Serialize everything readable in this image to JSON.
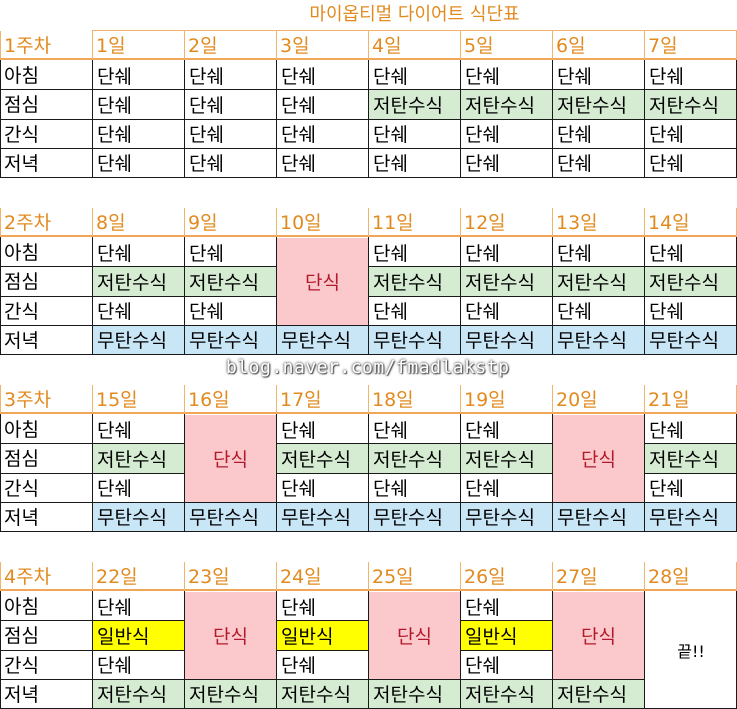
{
  "title": "마이옵티멀 다이어트 식단표",
  "watermark": "blog.naver.com/fmadlakstp",
  "colors": {
    "header_text": "#e28a1e",
    "green": "#d5ecd2",
    "blue": "#c9e6f7",
    "pink": "#fbc8cc",
    "yellow": "#ffff00"
  },
  "weeks": [
    {
      "label": "1주차",
      "days": [
        "1일",
        "2일",
        "3일",
        "4일",
        "5일",
        "6일",
        "7일"
      ],
      "rows": [
        {
          "meal": "아침",
          "cells": [
            {
              "text": "단쉐"
            },
            {
              "text": "단쉐"
            },
            {
              "text": "단쉐"
            },
            {
              "text": "단쉐"
            },
            {
              "text": "단쉐"
            },
            {
              "text": "단쉐"
            },
            {
              "text": "단쉐"
            }
          ]
        },
        {
          "meal": "점심",
          "cells": [
            {
              "text": "단쉐"
            },
            {
              "text": "단쉐"
            },
            {
              "text": "단쉐"
            },
            {
              "text": "저탄수식",
              "color": "green"
            },
            {
              "text": "저탄수식",
              "color": "green"
            },
            {
              "text": "저탄수식",
              "color": "green"
            },
            {
              "text": "저탄수식",
              "color": "green"
            }
          ]
        },
        {
          "meal": "간식",
          "cells": [
            {
              "text": "단쉐"
            },
            {
              "text": "단쉐"
            },
            {
              "text": "단쉐"
            },
            {
              "text": "단쉐"
            },
            {
              "text": "단쉐"
            },
            {
              "text": "단쉐"
            },
            {
              "text": "단쉐"
            }
          ]
        },
        {
          "meal": "저녁",
          "cells": [
            {
              "text": "단쉐"
            },
            {
              "text": "단쉐"
            },
            {
              "text": "단쉐"
            },
            {
              "text": "단쉐"
            },
            {
              "text": "단쉐"
            },
            {
              "text": "단쉐"
            },
            {
              "text": "단쉐"
            }
          ]
        }
      ]
    },
    {
      "label": "2주차",
      "days": [
        "8일",
        "9일",
        "10일",
        "11일",
        "12일",
        "13일",
        "14일"
      ],
      "rows": [
        {
          "meal": "아침",
          "cells": [
            {
              "text": "단쉐"
            },
            {
              "text": "단쉐"
            },
            {
              "text": "단식",
              "color": "pink",
              "rowspan": 3
            },
            {
              "text": "단쉐"
            },
            {
              "text": "단쉐"
            },
            {
              "text": "단쉐"
            },
            {
              "text": "단쉐"
            }
          ]
        },
        {
          "meal": "점심",
          "cells": [
            {
              "text": "저탄수식",
              "color": "green"
            },
            {
              "text": "저탄수식",
              "color": "green"
            },
            null,
            {
              "text": "저탄수식",
              "color": "green"
            },
            {
              "text": "저탄수식",
              "color": "green"
            },
            {
              "text": "저탄수식",
              "color": "green"
            },
            {
              "text": "저탄수식",
              "color": "green"
            }
          ]
        },
        {
          "meal": "간식",
          "cells": [
            {
              "text": "단쉐"
            },
            {
              "text": "단쉐"
            },
            null,
            {
              "text": "단쉐"
            },
            {
              "text": "단쉐"
            },
            {
              "text": "단쉐"
            },
            {
              "text": "단쉐"
            }
          ]
        },
        {
          "meal": "저녁",
          "cells": [
            {
              "text": "무탄수식",
              "color": "blue"
            },
            {
              "text": "무탄수식",
              "color": "blue"
            },
            {
              "text": "무탄수식",
              "color": "blue"
            },
            {
              "text": "무탄수식",
              "color": "blue"
            },
            {
              "text": "무탄수식",
              "color": "blue"
            },
            {
              "text": "무탄수식",
              "color": "blue"
            },
            {
              "text": "무탄수식",
              "color": "blue"
            }
          ]
        }
      ]
    },
    {
      "label": "3주차",
      "days": [
        "15일",
        "16일",
        "17일",
        "18일",
        "19일",
        "20일",
        "21일"
      ],
      "rows": [
        {
          "meal": "아침",
          "cells": [
            {
              "text": "단쉐"
            },
            {
              "text": "단식",
              "color": "pink",
              "rowspan": 3
            },
            {
              "text": "단쉐"
            },
            {
              "text": "단쉐"
            },
            {
              "text": "단쉐"
            },
            {
              "text": "단식",
              "color": "pink",
              "rowspan": 3
            },
            {
              "text": "단쉐"
            }
          ]
        },
        {
          "meal": "점심",
          "cells": [
            {
              "text": "저탄수식",
              "color": "green"
            },
            null,
            {
              "text": "저탄수식",
              "color": "green"
            },
            {
              "text": "저탄수식",
              "color": "green"
            },
            {
              "text": "저탄수식",
              "color": "green"
            },
            null,
            {
              "text": "저탄수식",
              "color": "green"
            }
          ]
        },
        {
          "meal": "간식",
          "cells": [
            {
              "text": "단쉐"
            },
            null,
            {
              "text": "단쉐"
            },
            {
              "text": "단쉐"
            },
            {
              "text": "단쉐"
            },
            null,
            {
              "text": "단쉐"
            }
          ]
        },
        {
          "meal": "저녁",
          "cells": [
            {
              "text": "무탄수식",
              "color": "blue"
            },
            {
              "text": "무탄수식",
              "color": "blue"
            },
            {
              "text": "무탄수식",
              "color": "blue"
            },
            {
              "text": "무탄수식",
              "color": "blue"
            },
            {
              "text": "무탄수식",
              "color": "blue"
            },
            {
              "text": "무탄수식",
              "color": "blue"
            },
            {
              "text": "무탄수식",
              "color": "blue"
            }
          ]
        }
      ]
    },
    {
      "label": "4주차",
      "days": [
        "22일",
        "23일",
        "24일",
        "25일",
        "26일",
        "27일",
        "28일"
      ],
      "rows": [
        {
          "meal": "아침",
          "cells": [
            {
              "text": "단쉐"
            },
            {
              "text": "단식",
              "color": "pink",
              "rowspan": 3
            },
            {
              "text": "단쉐"
            },
            {
              "text": "단식",
              "color": "pink",
              "rowspan": 3
            },
            {
              "text": "단쉐"
            },
            {
              "text": "단식",
              "color": "pink",
              "rowspan": 3
            },
            {
              "text": "끝!!",
              "color": "end",
              "rowspan": 4
            }
          ]
        },
        {
          "meal": "점심",
          "cells": [
            {
              "text": "일반식",
              "color": "yellow"
            },
            null,
            {
              "text": "일반식",
              "color": "yellow"
            },
            null,
            {
              "text": "일반식",
              "color": "yellow"
            },
            null,
            null
          ]
        },
        {
          "meal": "간식",
          "cells": [
            {
              "text": "단쉐"
            },
            null,
            {
              "text": "단쉐"
            },
            null,
            {
              "text": "단쉐"
            },
            null,
            null
          ]
        },
        {
          "meal": "저녁",
          "cells": [
            {
              "text": "저탄수식",
              "color": "green"
            },
            {
              "text": "저탄수식",
              "color": "green"
            },
            {
              "text": "저탄수식",
              "color": "green"
            },
            {
              "text": "저탄수식",
              "color": "green"
            },
            {
              "text": "저탄수식",
              "color": "green"
            },
            {
              "text": "저탄수식",
              "color": "green"
            },
            null
          ]
        }
      ]
    }
  ]
}
